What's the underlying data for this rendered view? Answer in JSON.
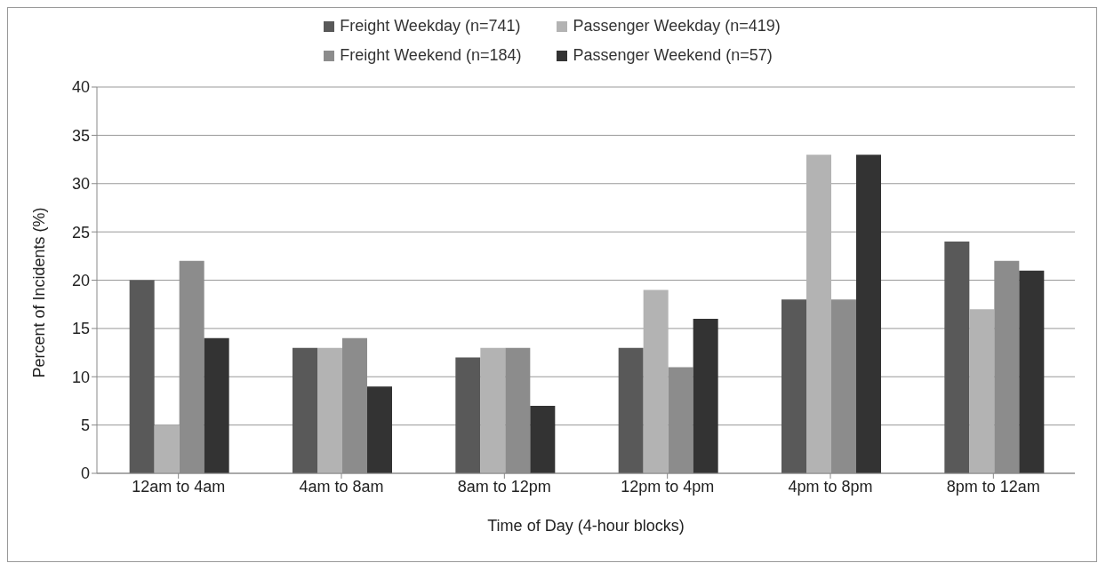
{
  "chart_data": {
    "type": "bar",
    "xlabel": "Time of Day (4-hour blocks)",
    "ylabel": "Percent of Incidents (%)",
    "categories": [
      "12am to 4am",
      "4am to 8am",
      "8am to 12pm",
      "12pm to 4pm",
      "4pm to 8pm",
      "8pm to 12am"
    ],
    "series": [
      {
        "name": "Freight Weekday (n=741)",
        "color": "#595959",
        "values": [
          20,
          13,
          12,
          13,
          18,
          24
        ]
      },
      {
        "name": "Passenger Weekday (n=419)",
        "color": "#b3b3b3",
        "values": [
          5,
          13,
          13,
          19,
          33,
          17
        ]
      },
      {
        "name": "Freight Weekend (n=184)",
        "color": "#8c8c8c",
        "values": [
          22,
          14,
          13,
          11,
          18,
          22
        ]
      },
      {
        "name": "Passenger Weekend (n=57)",
        "color": "#333333",
        "values": [
          14,
          9,
          7,
          16,
          33,
          21
        ]
      }
    ],
    "ylim": [
      0,
      40
    ],
    "yticks": [
      0,
      5,
      10,
      15,
      20,
      25,
      30,
      35,
      40
    ],
    "grid": "y",
    "legend": "top"
  }
}
